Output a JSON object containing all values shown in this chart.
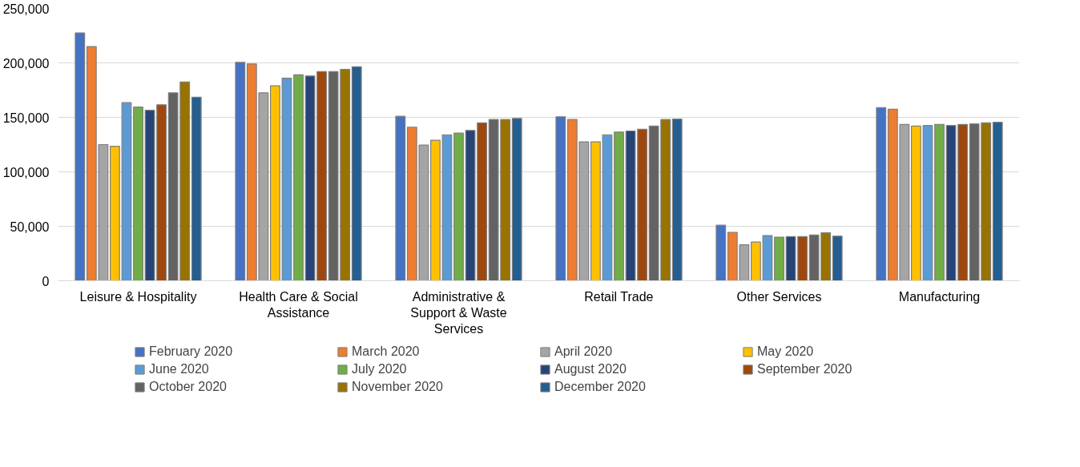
{
  "chart_data": {
    "type": "bar",
    "categories": [
      "Leisure & Hospitality",
      "Health Care & Social Assistance",
      "Administrative & Support & Waste Services",
      "Retail Trade",
      "Other Services",
      "Manufacturing"
    ],
    "ylim": [
      0,
      250000
    ],
    "yticks": [
      {
        "value": 0,
        "label": "0"
      },
      {
        "value": 50000,
        "label": "50,000"
      },
      {
        "value": 100000,
        "label": "100,000"
      },
      {
        "value": 150000,
        "label": "150,000"
      },
      {
        "value": 200000,
        "label": "200,000"
      },
      {
        "value": 250000,
        "label": "250,000"
      }
    ],
    "grid": "y",
    "legend": "bottom",
    "series": [
      {
        "name": "February 2020",
        "color": "#4472c4",
        "values": [
          227500,
          200500,
          151000,
          150500,
          51000,
          159000
        ]
      },
      {
        "name": "March 2020",
        "color": "#ed7d31",
        "values": [
          215000,
          199000,
          141000,
          148000,
          44500,
          157500
        ]
      },
      {
        "name": "April 2020",
        "color": "#a5a5a5",
        "values": [
          125000,
          172500,
          124500,
          127500,
          33000,
          143500
        ]
      },
      {
        "name": "May 2020",
        "color": "#ffc000",
        "values": [
          123500,
          179000,
          129000,
          127500,
          35500,
          142000
        ]
      },
      {
        "name": "June 2020",
        "color": "#5b9bd5",
        "values": [
          163500,
          186000,
          134000,
          134000,
          41500,
          142500
        ]
      },
      {
        "name": "July 2020",
        "color": "#70ad47",
        "values": [
          159500,
          189000,
          135500,
          136500,
          40000,
          143500
        ]
      },
      {
        "name": "August 2020",
        "color": "#264478",
        "values": [
          156500,
          188000,
          138000,
          137500,
          40500,
          142500
        ]
      },
      {
        "name": "September 2020",
        "color": "#9e480e",
        "values": [
          161500,
          192000,
          145000,
          139000,
          40500,
          143500
        ]
      },
      {
        "name": "October 2020",
        "color": "#636363",
        "values": [
          172500,
          192000,
          148000,
          142000,
          42000,
          144000
        ]
      },
      {
        "name": "November 2020",
        "color": "#997300",
        "values": [
          182500,
          194000,
          148000,
          148000,
          44000,
          145000
        ]
      },
      {
        "name": "December 2020",
        "color": "#255e91",
        "values": [
          168500,
          196500,
          149000,
          148500,
          41000,
          145500
        ]
      }
    ]
  }
}
